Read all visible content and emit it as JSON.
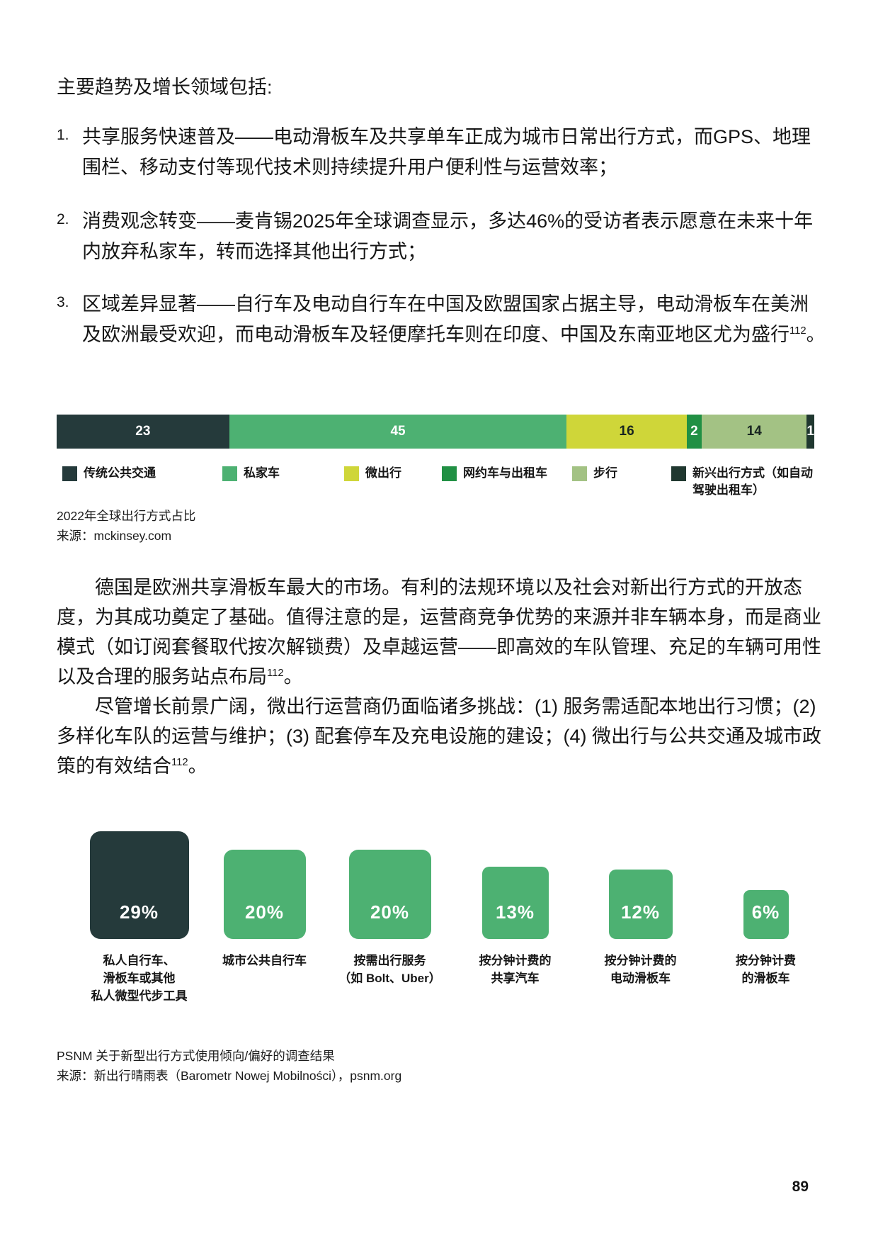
{
  "heading": "主要趋势及增长领域包括:",
  "list": {
    "items": [
      {
        "num": "1.",
        "text": "共享服务快速普及——电动滑板车及共享单车正成为城市日常出行方式，而GPS、地理围栏、移动支付等现代技术则持续提升用户便利性与运营效率；",
        "sup": "",
        "end": ""
      },
      {
        "num": "2.",
        "text": "消费观念转变——麦肯锡2025年全球调查显示，多达46%的受访者表示愿意在未来十年内放弃私家车，转而选择其他出行方式；",
        "sup": "",
        "end": ""
      },
      {
        "num": "3.",
        "text": "区域差异显著——自行车及电动自行车在中国及欧盟国家占据主导，电动滑板车在美洲及欧洲最受欢迎，而电动滑板车及轻便摩托车则在印度、中国及东南亚地区尤为盛行",
        "sup": "112",
        "end": "。"
      }
    ]
  },
  "body": {
    "p1": {
      "text": "德国是欧洲共享滑板车最大的市场。有利的法规环境以及社会对新出行方式的开放态度，为其成功奠定了基础。值得注意的是，运营商竞争优势的来源并非车辆本身，而是商业模式（如订阅套餐取代按次解锁费）及卓越运营——即高效的车队管理、充足的车辆可用性以及合理的服务站点布局",
      "sup": "112",
      "end": "。"
    },
    "p2": {
      "text": "尽管增长前景广阔，微出行运营商仍面临诸多挑战：(1) 服务需适配本地出行习惯；(2) 多样化车队的运营与维护；(3) 配套停车及充电设施的建设；(4) 微出行与公共交通及城市政策的有效结合",
      "sup": "112",
      "end": "。"
    }
  },
  "chart_data": [
    {
      "type": "bar",
      "subtype": "horizontal-stacked",
      "title": "2022年全球出行方式占比",
      "source": "来源：mckinsey.com",
      "unit": "%",
      "categories": [
        "传统公共交通",
        "私家车",
        "微出行",
        "网约车与出租车",
        "步行",
        "新兴出行方式（如自动驾驶出租车）"
      ],
      "values": [
        23,
        45,
        16,
        2,
        14,
        1
      ],
      "colors": [
        "#253a3b",
        "#4db172",
        "#cfd639",
        "#219044",
        "#a3c284",
        "#203830"
      ],
      "label_colors": [
        "#ffffff",
        "#ffffff",
        "#172420",
        "#ffffff",
        "#172420",
        "#ffffff"
      ],
      "legend_lines": [
        [
          "传统公共交通"
        ],
        [
          "私家车"
        ],
        [
          "微出行"
        ],
        [
          "网约车与出租车"
        ],
        [
          "步行"
        ],
        [
          "新兴出行方式（如自动",
          "驾驶出租车）"
        ]
      ],
      "legend_position": "bottom",
      "axis": "none"
    },
    {
      "type": "bar",
      "subtype": "proportional-rounded-squares",
      "title": "PSNM 关于新型出行方式使用倾向/偏好的调查结果",
      "source": "来源：新出行晴雨表（Barometr Nowej Mobilności），psnm.org",
      "categories": [
        "私人自行车、滑板车或其他私人微型代步工具",
        "城市公共自行车",
        "按需出行服务（如 Bolt、Uber）",
        "按分钟计费的共享汽车",
        "按分钟计费的电动滑板车",
        "按分钟计费的滑板车"
      ],
      "values": [
        29,
        20,
        20,
        13,
        12,
        6
      ],
      "labels": [
        "29%",
        "20%",
        "20%",
        "13%",
        "12%",
        "6%"
      ],
      "colors": [
        "#253a3b",
        "#4db172",
        "#4db172",
        "#4db172",
        "#4db172",
        "#4db172"
      ],
      "category_lines": [
        [
          "私人自行车、",
          "滑板车或其他",
          "私人微型代步工具"
        ],
        [
          "城市公共自行车"
        ],
        [
          "按需出行服务",
          "（如 Bolt、Uber）"
        ],
        [
          "按分钟计费的",
          "共享汽车"
        ],
        [
          "按分钟计费的",
          "电动滑板车"
        ],
        [
          "按分钟计费",
          "的滑板车"
        ]
      ]
    }
  ],
  "page": {
    "number": "89"
  }
}
